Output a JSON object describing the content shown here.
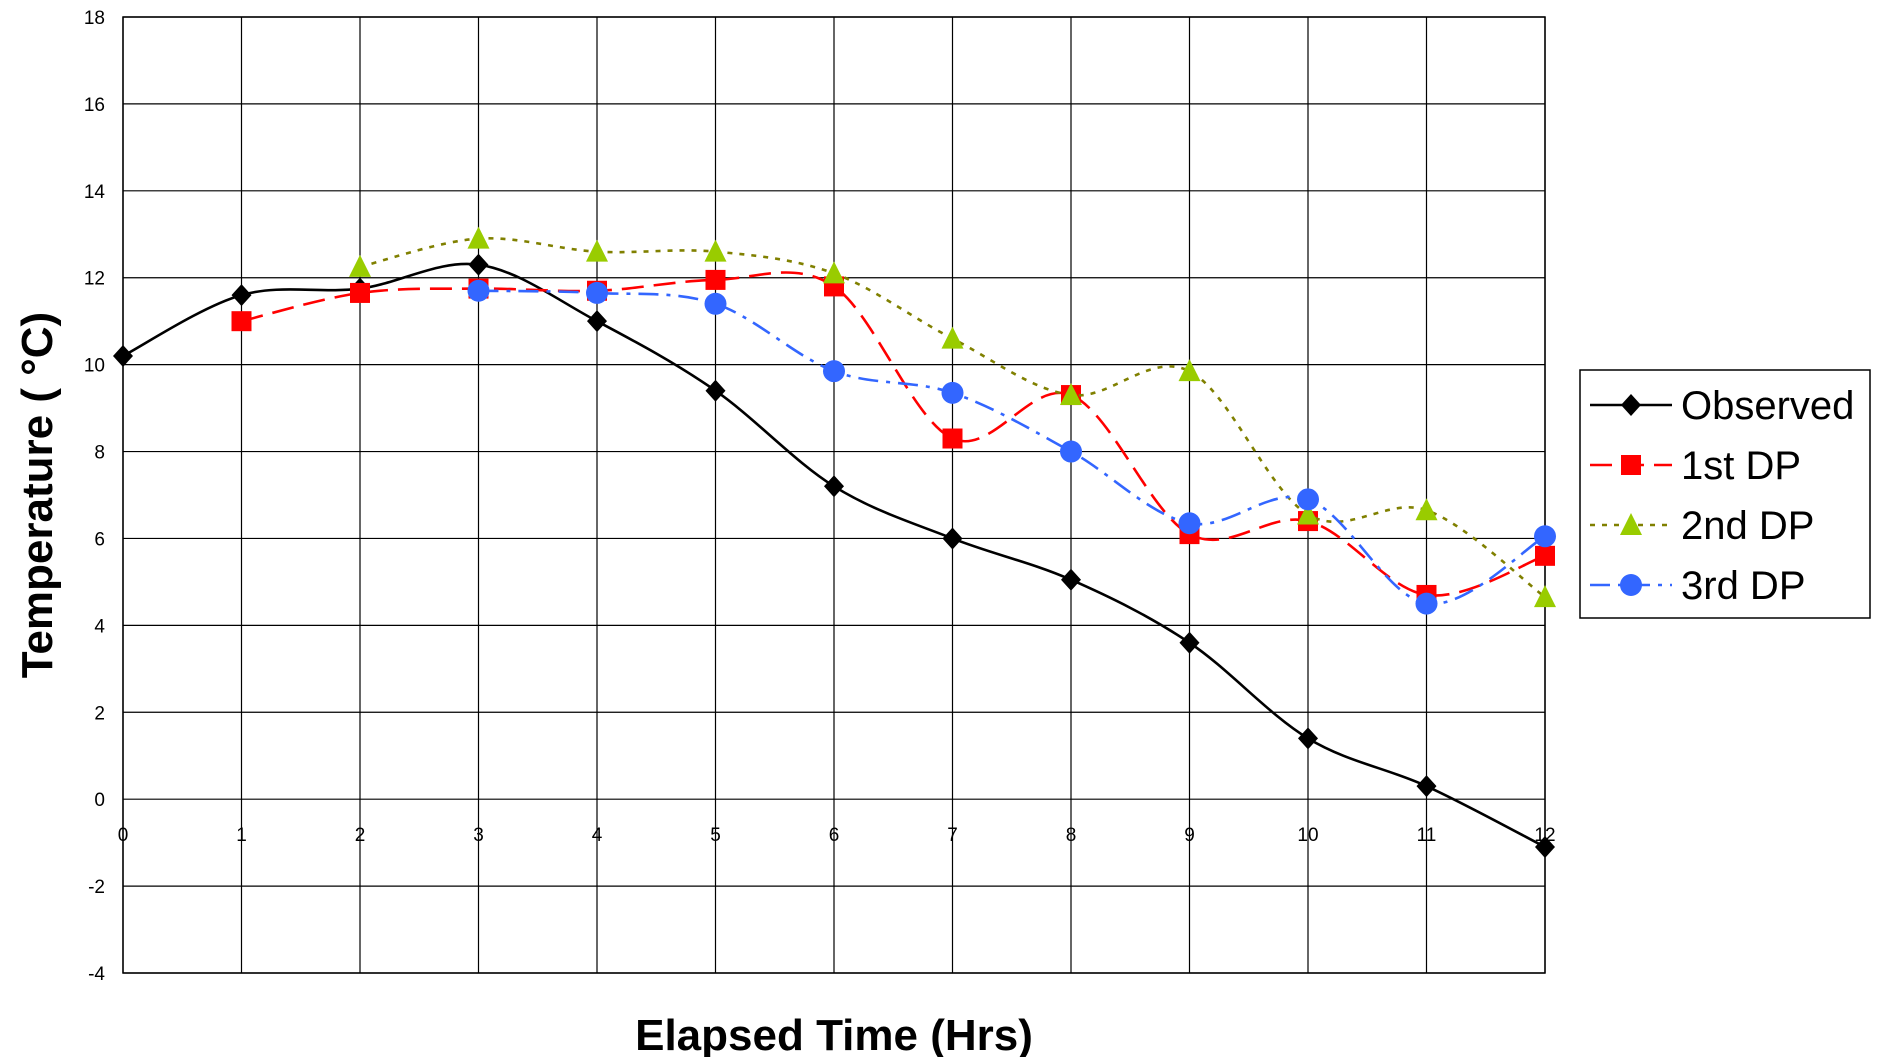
{
  "chart_data": {
    "type": "line",
    "title": "",
    "xlabel": "Elapsed Time (Hrs)",
    "ylabel": "Temperature (  °C)",
    "xlim": [
      0,
      12
    ],
    "ylim": [
      -4,
      18
    ],
    "x_ticks": [
      "0",
      "1",
      "2",
      "3",
      "4",
      "5",
      "6",
      "7",
      "8",
      "9",
      "10",
      "11",
      "12"
    ],
    "y_ticks": [
      "-4",
      "-2",
      "0",
      "2",
      "4",
      "6",
      "8",
      "10",
      "12",
      "14",
      "16",
      "18"
    ],
    "grid": true,
    "legend_position": "right",
    "series": [
      {
        "name": "Observed",
        "color": "#000000",
        "marker": "diamond",
        "dash": "solid",
        "x": [
          0,
          1,
          2,
          3,
          4,
          5,
          6,
          7,
          8,
          9,
          10,
          11,
          12
        ],
        "values": [
          10.2,
          11.6,
          11.75,
          12.3,
          11.0,
          9.4,
          7.2,
          6.0,
          5.05,
          3.6,
          1.4,
          0.3,
          -1.1
        ]
      },
      {
        "name": "1st DP",
        "color": "#ff0000",
        "marker": "square",
        "dash": "dashed",
        "x": [
          1,
          2,
          3,
          4,
          5,
          6,
          7,
          8,
          9,
          10,
          11,
          12
        ],
        "values": [
          11.0,
          11.65,
          11.75,
          11.7,
          11.95,
          11.8,
          8.3,
          9.3,
          6.1,
          6.4,
          4.7,
          5.6
        ]
      },
      {
        "name": "2nd DP",
        "color": "#99cc00",
        "line_color": "#808000",
        "marker": "triangle",
        "dash": "dotted",
        "x": [
          2,
          3,
          4,
          5,
          6,
          7,
          8,
          9,
          10,
          11,
          12
        ],
        "values": [
          12.25,
          12.9,
          12.6,
          12.6,
          12.1,
          10.6,
          9.3,
          9.85,
          6.55,
          6.65,
          4.65
        ]
      },
      {
        "name": "3rd DP",
        "color": "#3366ff",
        "marker": "circle",
        "dash": "dashdot",
        "x": [
          3,
          4,
          5,
          6,
          7,
          8,
          9,
          10,
          11,
          12
        ],
        "values": [
          11.7,
          11.65,
          11.4,
          9.85,
          9.35,
          8.0,
          6.35,
          6.9,
          4.5,
          6.05
        ]
      }
    ]
  }
}
